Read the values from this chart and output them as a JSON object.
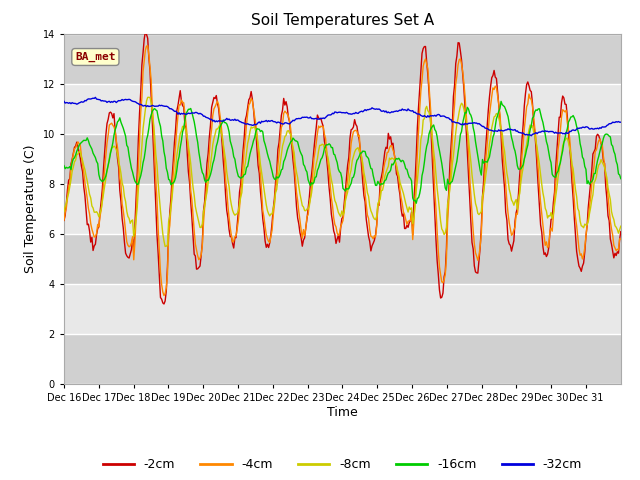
{
  "title": "Soil Temperatures Set A",
  "xlabel": "Time",
  "ylabel": "Soil Temperature (C)",
  "ylim": [
    0,
    14
  ],
  "yticks": [
    0,
    2,
    4,
    6,
    8,
    10,
    12,
    14
  ],
  "annotation": "BA_met",
  "background_color": "#ffffff",
  "plot_bg_light": "#e8e8e8",
  "plot_bg_dark": "#d0d0d0",
  "grid_color": "#ffffff",
  "colors": {
    "-2cm": "#cc0000",
    "-4cm": "#ff8800",
    "-8cm": "#cccc00",
    "-16cm": "#00cc00",
    "-32cm": "#0000dd"
  },
  "legend_labels": [
    "-2cm",
    "-4cm",
    "-8cm",
    "-16cm",
    "-32cm"
  ],
  "xtick_labels": [
    "Dec 16",
    "Dec 17",
    "Dec 18",
    "Dec 19",
    "Dec 20",
    "Dec 21",
    "Dec 22",
    "Dec 23",
    "Dec 24",
    "Dec 25",
    "Dec 26",
    "Dec 27",
    "Dec 28",
    "Dec 29",
    "Dec 30",
    "Dec 31"
  ],
  "num_points": 480,
  "figsize": [
    6.4,
    4.8
  ],
  "dpi": 100
}
